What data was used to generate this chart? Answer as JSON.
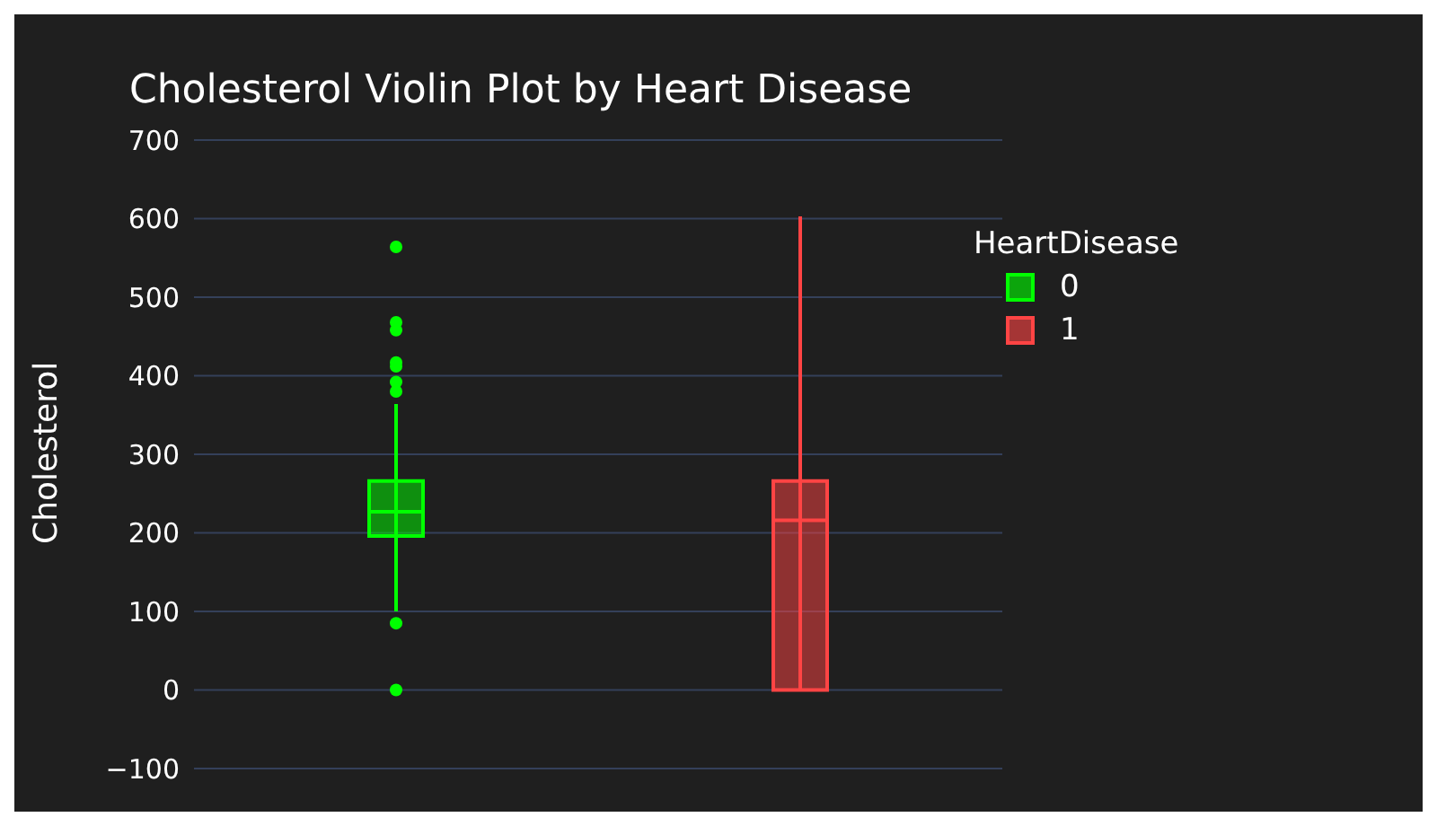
{
  "chart_data": {
    "type": "box",
    "title": "Cholesterol Violin Plot by Heart Disease",
    "ylabel": "Cholesterol",
    "legend_title": "HeartDisease",
    "categories": [
      null,
      null
    ],
    "series": [
      {
        "name": "0",
        "color": "#00ff00",
        "boxes": [
          {
            "low": 100,
            "q1": 196,
            "median": 227,
            "q3": 266,
            "high": 364,
            "outliers": [
              0,
              85,
              380,
              392,
              412,
              417,
              458,
              468,
              564
            ]
          },
          null
        ]
      },
      {
        "name": "1",
        "color": "#ff4444",
        "boxes": [
          null,
          {
            "low": 0,
            "q1": 0,
            "median": 216,
            "q3": 266,
            "high": 603
          }
        ]
      }
    ],
    "ylim": [
      -100,
      700
    ],
    "yticks": [
      {
        "value": -100,
        "label": "−100"
      },
      0,
      100,
      200,
      300,
      400,
      500,
      600,
      700
    ],
    "grid": "y",
    "legend": "top right",
    "tick_labels": "y"
  }
}
